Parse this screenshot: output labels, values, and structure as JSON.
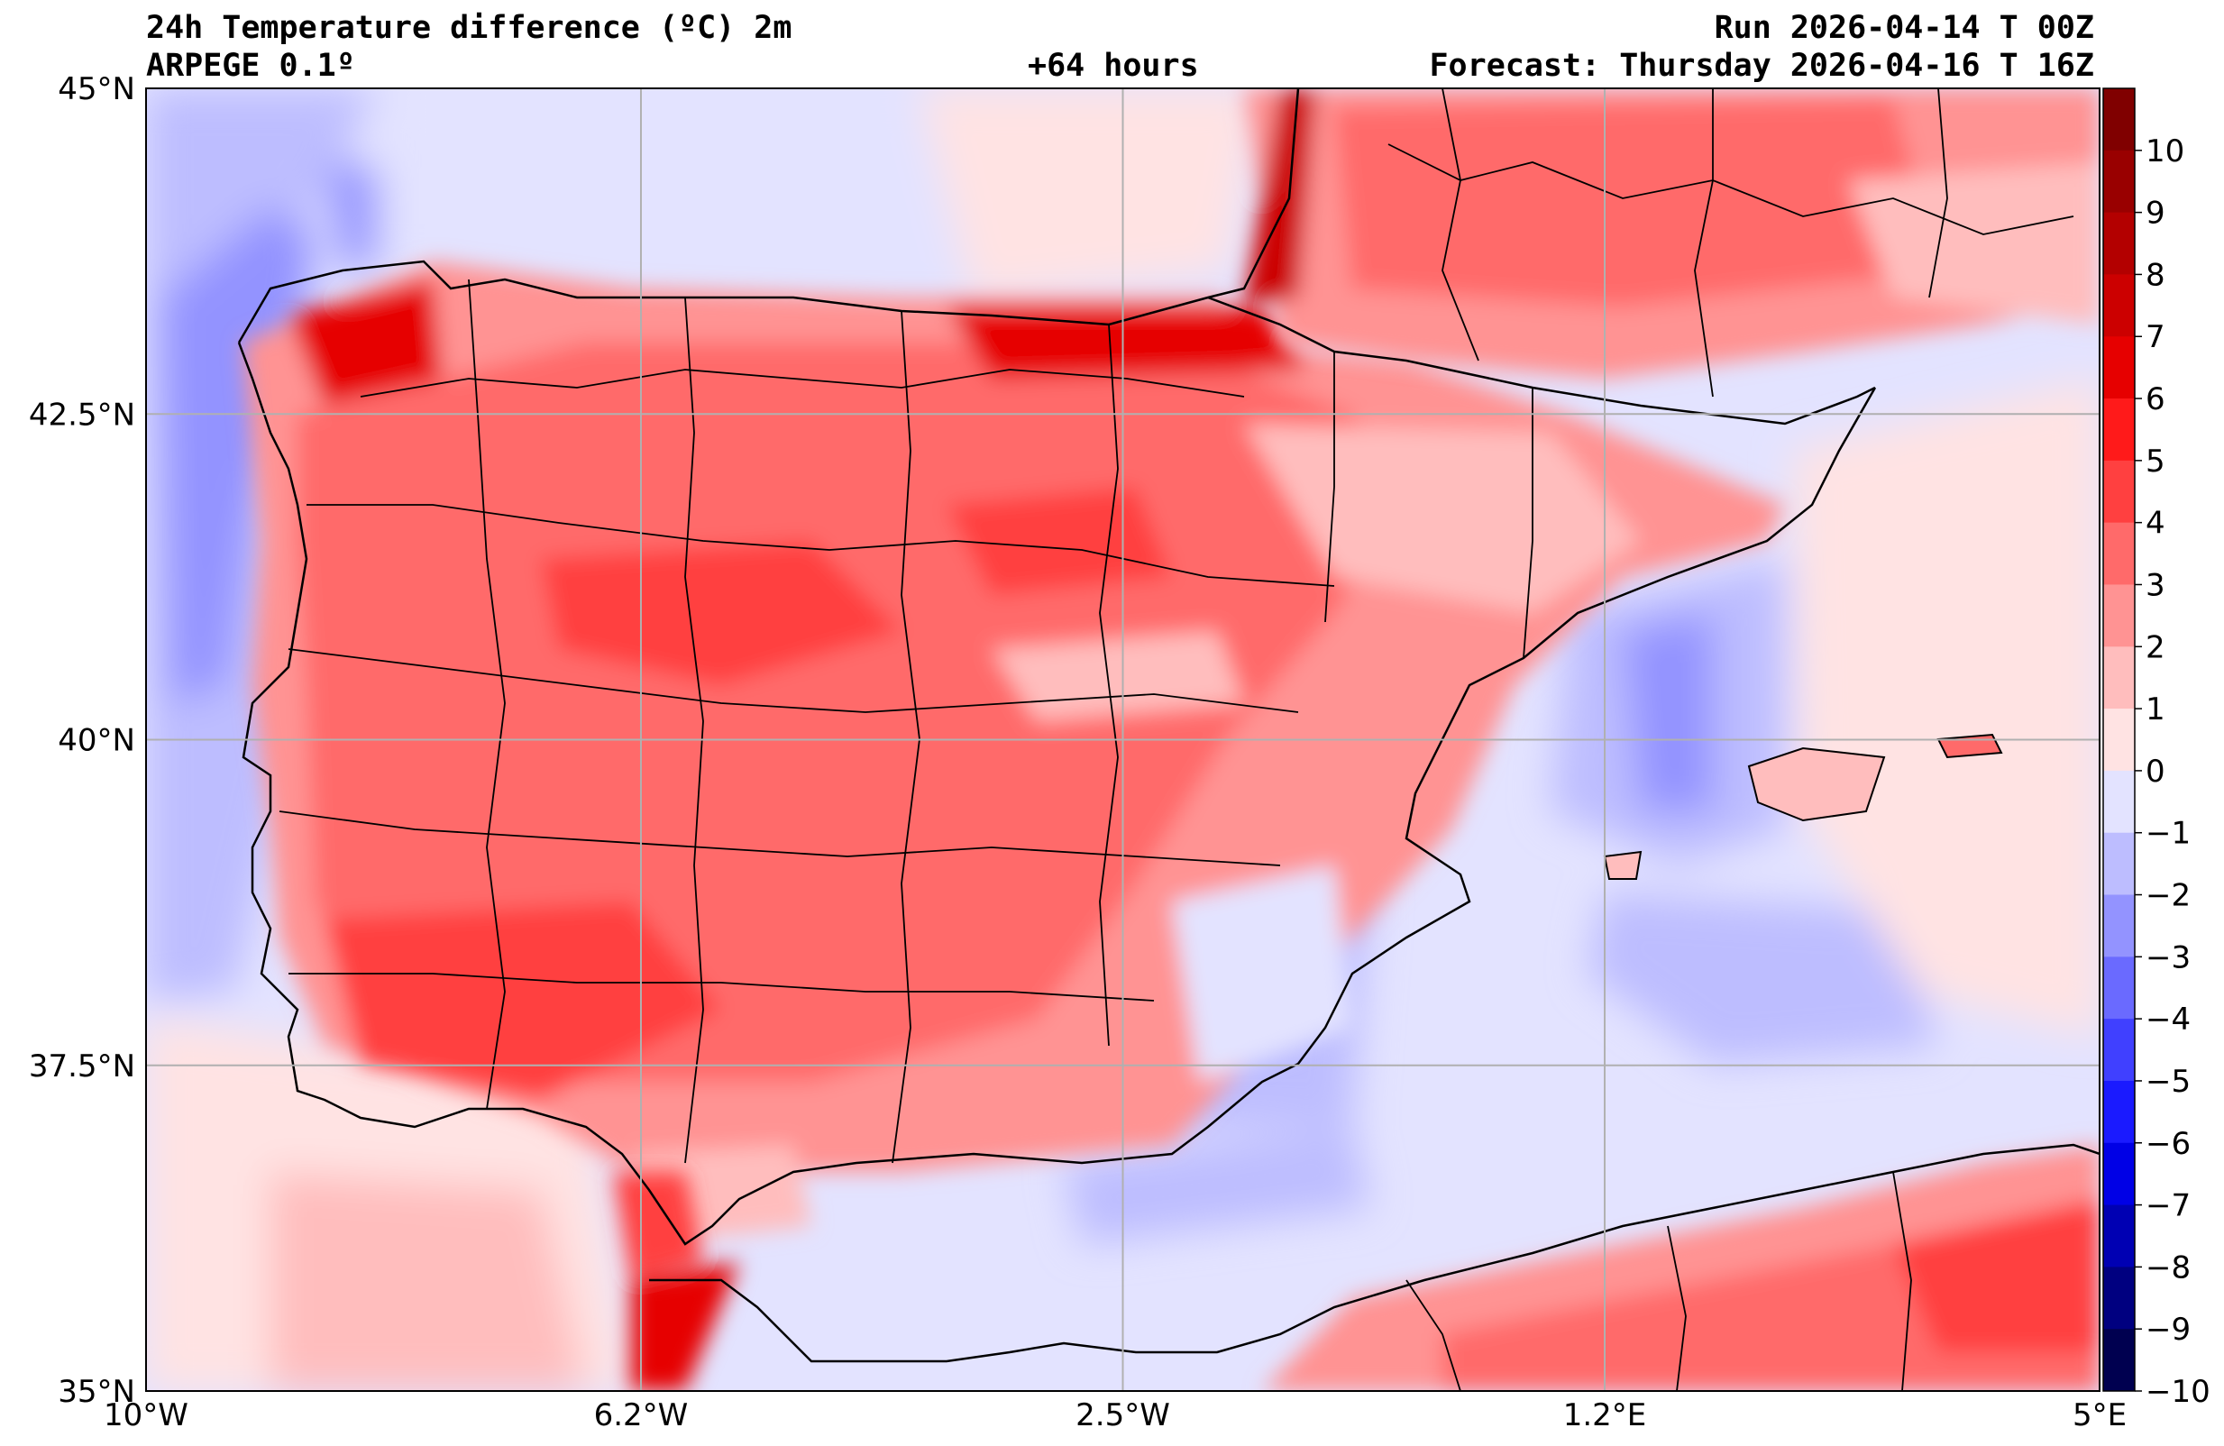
{
  "header": {
    "title": "24h Temperature difference (ºC) 2m",
    "model": "ARPEGE 0.1º",
    "lead_time": "+64 hours",
    "run": "Run 2026-04-14 T 00Z",
    "forecast": "Forecast: Thursday 2026-04-16 T 16Z"
  },
  "map": {
    "lon_range": [
      -10,
      5
    ],
    "lat_range": [
      35,
      45
    ],
    "lon_ticks": [
      {
        "value": -10,
        "label": "10°W"
      },
      {
        "value": -6.2,
        "label": "6.2°W"
      },
      {
        "value": -2.5,
        "label": "2.5°W"
      },
      {
        "value": 1.2,
        "label": "1.2°E"
      },
      {
        "value": 5,
        "label": "5°E"
      }
    ],
    "lat_ticks": [
      {
        "value": 45,
        "label": "45°N"
      },
      {
        "value": 42.5,
        "label": "42.5°N"
      },
      {
        "value": 40,
        "label": "40°N"
      },
      {
        "value": 37.5,
        "label": "37.5°N"
      },
      {
        "value": 35,
        "label": "35°N"
      }
    ],
    "grid": true
  },
  "colorbar": {
    "levels": [
      10,
      9,
      8,
      7,
      6,
      5,
      4,
      3,
      2,
      1,
      0,
      -1,
      -2,
      -3,
      -4,
      -5,
      -6,
      -7,
      -8,
      -9,
      -10
    ],
    "labels": [
      "10",
      "9",
      "8",
      "7",
      "6",
      "5",
      "4",
      "3",
      "2",
      "1",
      "0",
      "−1",
      "−2",
      "−3",
      "−4",
      "−5",
      "−6",
      "−7",
      "−8",
      "−9",
      "−10"
    ],
    "colors": [
      "#800000",
      "#990000",
      "#b30000",
      "#cc0000",
      "#e60000",
      "#ff1a1a",
      "#ff4040",
      "#ff6a6a",
      "#ff9393",
      "#ffbdbd",
      "#ffe3e3",
      "#e3e3ff",
      "#bdbdff",
      "#9393ff",
      "#6a6aff",
      "#4040ff",
      "#1a1aff",
      "#0000e6",
      "#0000b3",
      "#000080",
      "#000050"
    ]
  }
}
